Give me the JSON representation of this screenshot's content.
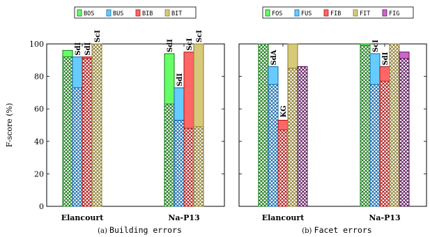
{
  "chart_data": [
    {
      "type": "bar",
      "panel": "building",
      "caption_prefix": "(a)",
      "caption_text": "Building errors",
      "ylabel": "F-score (%)",
      "ylim": [
        0,
        100
      ],
      "yticks": [
        "0",
        "20",
        "40",
        "60",
        "80",
        "100"
      ],
      "categories": [
        "Elancourt",
        "Na-P13"
      ],
      "series": [
        {
          "name": "BOS",
          "color": "#66ff66",
          "hatch": "#117711",
          "values": [
            96,
            94
          ],
          "hatched_values": [
            92,
            63
          ],
          "labels": [
            "",
            "SdI"
          ]
        },
        {
          "name": "BUS",
          "color": "#66ccff",
          "hatch": "#1166aa",
          "values": [
            92,
            73
          ],
          "hatched_values": [
            73,
            53
          ],
          "labels": [
            "SdI",
            "SdI"
          ]
        },
        {
          "name": "BIB",
          "color": "#ff6666",
          "hatch": "#aa1111",
          "values": [
            92,
            95
          ],
          "hatched_values": [
            91,
            48
          ],
          "labels": [
            "SdI",
            "ScI"
          ]
        },
        {
          "name": "BIT",
          "color": "#d6c97a",
          "hatch": "#8a7a2a",
          "values": [
            100,
            100
          ],
          "hatched_values": [
            100,
            49
          ],
          "labels": [
            "ScI",
            "ScI"
          ]
        }
      ]
    },
    {
      "type": "bar",
      "panel": "facet",
      "caption_prefix": "(b)",
      "caption_text": "Facet errors",
      "ylim": [
        0,
        100
      ],
      "categories": [
        "Elancourt",
        "Na-P13"
      ],
      "series": [
        {
          "name": "FOS",
          "color": "#66ff66",
          "hatch": "#117711",
          "values": [
            100,
            100
          ],
          "hatched_values": [
            100,
            99
          ],
          "labels": [
            "",
            ""
          ]
        },
        {
          "name": "FUS",
          "color": "#66ccff",
          "hatch": "#1166aa",
          "values": [
            86,
            94
          ],
          "hatched_values": [
            75,
            75
          ],
          "labels": [
            "SdA",
            "ScI"
          ]
        },
        {
          "name": "FIB",
          "color": "#ff6666",
          "hatch": "#aa1111",
          "values": [
            53,
            86
          ],
          "hatched_values": [
            47,
            77
          ],
          "labels": [
            "KG",
            "SdI"
          ]
        },
        {
          "name": "FIT",
          "color": "#d6c97a",
          "hatch": "#8a7a2a",
          "values": [
            100,
            100
          ],
          "hatched_values": [
            85,
            100
          ],
          "labels": [
            "",
            ""
          ]
        },
        {
          "name": "FIG",
          "color": "#cc66cc",
          "hatch": "#551155",
          "values": [
            86,
            95
          ],
          "hatched_values": [
            86,
            91
          ],
          "labels": [
            "",
            ""
          ]
        }
      ]
    }
  ]
}
